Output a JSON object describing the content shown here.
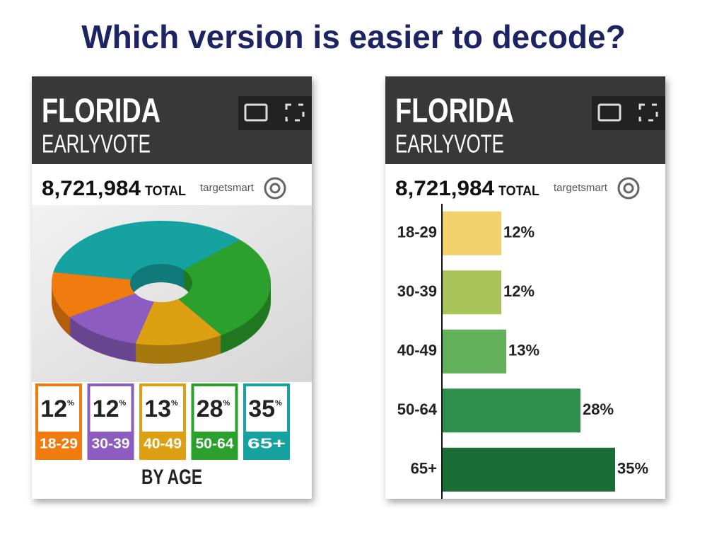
{
  "title": "Which version is easier to decode?",
  "chart_data": [
    {
      "type": "pie",
      "header": "FLORIDA",
      "subheader": "EARLYVOTE",
      "total": "8,721,984",
      "total_label": "TOTAL",
      "brand": "targetsmart",
      "categories": [
        "18-29",
        "30-39",
        "40-49",
        "50-64",
        "65+"
      ],
      "values": [
        12,
        12,
        13,
        28,
        35
      ],
      "unit": "%",
      "colors": [
        "#f07c10",
        "#8c5cc0",
        "#dca012",
        "#2ca02c",
        "#17a2a2"
      ],
      "footer": "BY AGE"
    },
    {
      "type": "bar",
      "orientation": "horizontal",
      "header": "FLORIDA",
      "subheader": "EARLYVOTE",
      "total": "8,721,984",
      "total_label": "TOTAL",
      "brand": "targetsmart",
      "categories": [
        "18-29",
        "30-39",
        "40-49",
        "50-64",
        "65+"
      ],
      "values": [
        12,
        12,
        13,
        28,
        35
      ],
      "value_labels": [
        "12%",
        "12%",
        "13%",
        "28%",
        "35%"
      ],
      "colors": [
        "#f2d06b",
        "#a8c35a",
        "#62b05a",
        "#2f8f4d",
        "#1a6e35"
      ],
      "xlim": [
        0,
        45
      ]
    }
  ]
}
